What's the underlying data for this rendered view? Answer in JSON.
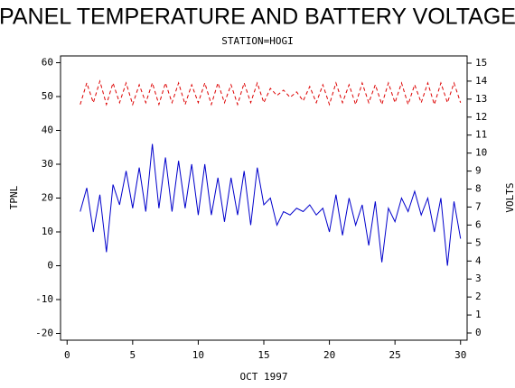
{
  "chart_data": {
    "type": "line",
    "title": "PANEL TEMPERATURE AND BATTERY VOLTAGE",
    "subtitle": "STATION=HOGI",
    "x_label": "OCT 1997",
    "y_label": "TPNL",
    "y2_label": "VOLTS",
    "x": [
      1,
      1.5,
      2,
      2.5,
      3,
      3.5,
      4,
      4.5,
      5,
      5.5,
      6,
      6.5,
      7,
      7.5,
      8,
      8.5,
      9,
      9.5,
      10,
      10.5,
      11,
      11.5,
      12,
      12.5,
      13,
      13.5,
      14,
      14.5,
      15,
      15.5,
      16,
      16.5,
      17,
      17.5,
      18,
      18.5,
      19,
      19.5,
      20,
      20.5,
      21,
      21.5,
      22,
      22.5,
      23,
      23.5,
      24,
      24.5,
      25,
      25.5,
      26,
      26.5,
      27,
      27.5,
      28,
      28.5,
      29,
      29.5,
      30
    ],
    "series": [
      {
        "name": "TPNL",
        "color": "#0000cc",
        "axis": "y",
        "values": [
          16,
          23,
          10,
          21,
          4,
          24,
          18,
          28,
          17,
          29,
          16,
          36,
          17,
          32,
          16,
          31,
          17,
          30,
          15,
          30,
          15,
          26,
          13,
          26,
          15,
          28,
          12,
          29,
          18,
          20,
          12,
          16,
          15,
          17,
          16,
          18,
          15,
          17,
          10,
          21,
          9,
          20,
          12,
          18,
          6,
          19,
          1,
          17,
          13,
          20,
          16,
          22,
          15,
          20,
          10,
          20,
          0,
          19,
          8
        ]
      },
      {
        "name": "VOLTS",
        "color": "#dd0000",
        "axis": "y2",
        "dashed": true,
        "values": [
          12.7,
          13.9,
          12.8,
          14,
          12.7,
          13.9,
          12.8,
          13.9,
          12.7,
          13.8,
          12.8,
          13.9,
          12.7,
          13.9,
          12.8,
          13.9,
          12.7,
          13.8,
          12.8,
          13.9,
          12.7,
          13.9,
          12.8,
          13.8,
          12.7,
          13.9,
          12.8,
          13.9,
          12.8,
          13.6,
          13.2,
          13.5,
          13.1,
          13.4,
          12.9,
          13.7,
          12.8,
          13.8,
          12.7,
          13.9,
          12.8,
          13.8,
          12.7,
          13.9,
          12.8,
          13.8,
          12.7,
          13.9,
          12.8,
          13.9,
          12.7,
          13.8,
          12.8,
          13.9,
          12.7,
          13.9,
          12.8,
          13.9,
          12.8
        ]
      }
    ],
    "xlim": [
      -0.5,
      30.5
    ],
    "xticks": [
      0,
      5,
      10,
      15,
      20,
      25,
      30
    ],
    "ylim": [
      -22,
      62
    ],
    "yticks": [
      -20,
      -10,
      0,
      10,
      20,
      30,
      40,
      50,
      60
    ],
    "y2lim": [
      -0.4,
      15.4
    ],
    "y2ticks": [
      0,
      1,
      2,
      3,
      4,
      5,
      6,
      7,
      8,
      9,
      10,
      11,
      12,
      13,
      14,
      15
    ]
  }
}
